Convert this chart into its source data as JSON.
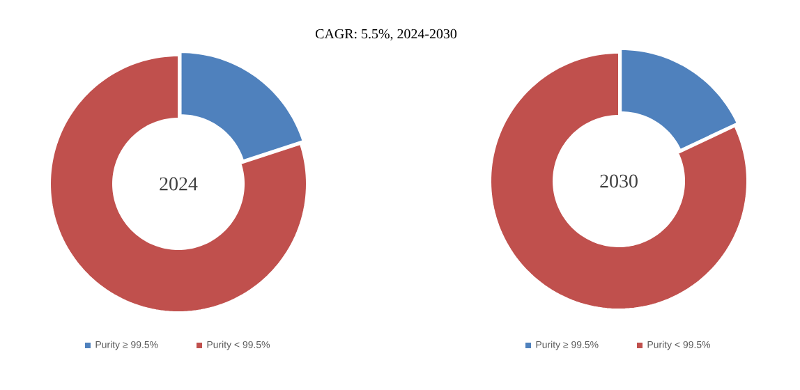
{
  "chart_data": [
    {
      "type": "donut",
      "title": "2024",
      "annotations": [
        "CAGR:   5.5%, 2024-2030"
      ],
      "categories": [
        "Purity ≥ 99.5%",
        "Purity < 99.5%"
      ],
      "values": [
        20,
        80
      ],
      "colors": [
        "#4f81bd",
        "#c0504d"
      ],
      "legend": "bottom"
    },
    {
      "type": "donut",
      "title": "2030",
      "categories": [
        "Purity ≥ 99.5%",
        "Purity < 99.5%"
      ],
      "values": [
        18,
        82
      ],
      "colors": [
        "#4f81bd",
        "#c0504d"
      ],
      "legend": "bottom"
    }
  ]
}
